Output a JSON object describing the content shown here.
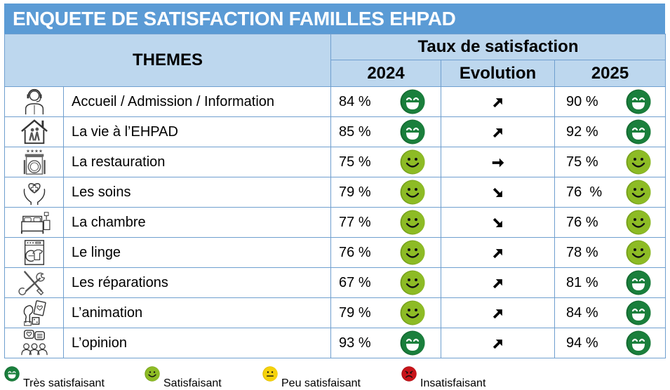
{
  "title": "ENQUETE DE SATISFACTION FAMILLES EHPAD",
  "header": {
    "themes": "THEMES",
    "taux": "Taux de satisfaction",
    "year_a": "2024",
    "evolution": "Evolution",
    "year_b": "2025"
  },
  "rows": [
    {
      "icon": "receptionist-headset-icon",
      "label": "Accueil / Admission / Information",
      "v2024": "84 %",
      "s2024": "tres",
      "evo": "up",
      "v2025": "90 %",
      "s2025": "tres"
    },
    {
      "icon": "house-elderly-icon",
      "label": "La vie à l’EHPAD",
      "v2024": "85 %",
      "s2024": "tres",
      "evo": "up",
      "v2025": "92 %",
      "s2025": "tres"
    },
    {
      "icon": "restaurant-plate-icon",
      "label": "La restauration",
      "v2024": "75 %",
      "s2024": "satis",
      "evo": "flat",
      "v2025": "75 %",
      "s2025": "satis"
    },
    {
      "icon": "care-hands-heart-icon",
      "label": "Les soins",
      "v2024": "79 %",
      "s2024": "satis",
      "evo": "down",
      "v2025": "76  %",
      "s2025": "satis"
    },
    {
      "icon": "bed-icon",
      "label": "La chambre",
      "v2024": "77 %",
      "s2024": "satis",
      "evo": "down",
      "v2025": "76 %",
      "s2025": "satis"
    },
    {
      "icon": "washing-machine-icon",
      "label": "Le linge",
      "v2024": "76 %",
      "s2024": "satis",
      "evo": "up",
      "v2025": "78 %",
      "s2025": "satis"
    },
    {
      "icon": "tools-wrench-screwdriver-icon",
      "label": "Les réparations",
      "v2024": "67 %",
      "s2024": "satis",
      "evo": "up",
      "v2025": "81 %",
      "s2025": "tres"
    },
    {
      "icon": "games-chess-cards-icon",
      "label": "L’animation",
      "v2024": "79 %",
      "s2024": "satis",
      "evo": "up",
      "v2025": "84 %",
      "s2025": "tres"
    },
    {
      "icon": "opinion-people-icon",
      "label": "L’opinion",
      "v2024": "93 %",
      "s2024": "tres",
      "evo": "up",
      "v2025": "94 %",
      "s2025": "tres"
    }
  ],
  "legend": [
    {
      "key": "tres",
      "label": "Très satisfaisant"
    },
    {
      "key": "satis",
      "label": "Satisfaisant"
    },
    {
      "key": "peu",
      "label": "Peu satisfaisant"
    },
    {
      "key": "insat",
      "label": "Insatisfaisant"
    }
  ],
  "colors": {
    "title_bg": "#5b9bd5",
    "header_bg": "#bdd7ee",
    "grid": "#6f9fcf",
    "tres": "#1a7f3c",
    "satis": "#8dbb25",
    "peu": "#f5d20a",
    "insat": "#c8141a"
  }
}
